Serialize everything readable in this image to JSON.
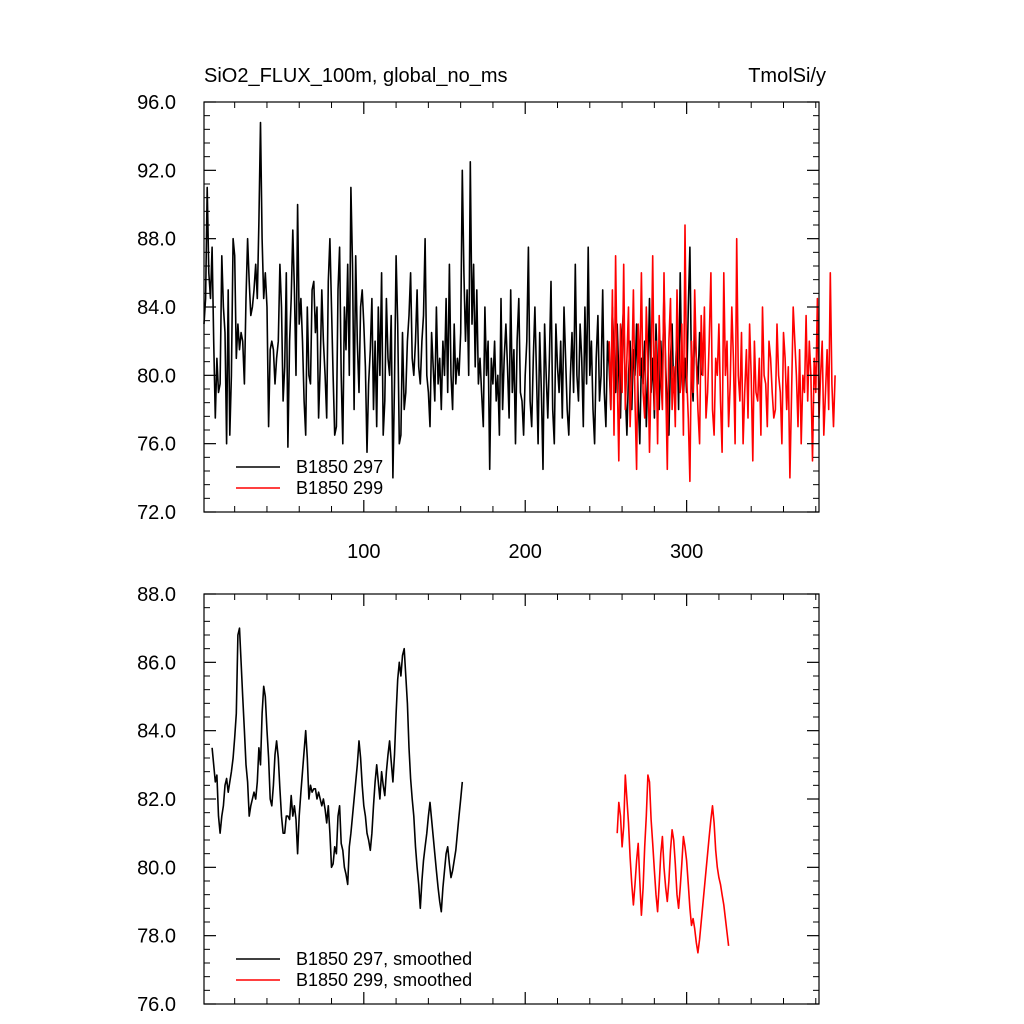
{
  "header": {
    "left_title": "SiO2_FLUX_100m, global_no_ms",
    "right_title": "TmolSi/y"
  },
  "colors": {
    "series_297": "#000000",
    "series_299": "#ff0000",
    "axes": "#000000"
  },
  "chart_data": [
    {
      "type": "line",
      "title": "SiO2_FLUX_100m, global_no_ms",
      "units": "TmolSi/y",
      "xlim": [
        1,
        382
      ],
      "ylim": [
        72,
        96
      ],
      "xticks": [
        100,
        200,
        300
      ],
      "xtick_labels": [
        "100",
        "200",
        "300"
      ],
      "yticks": [
        72,
        76,
        80,
        84,
        88,
        92,
        96
      ],
      "ytick_labels": [
        "72.0",
        "76.0",
        "80.0",
        "84.0",
        "88.0",
        "92.0",
        "96.0"
      ],
      "legend_position": "bottom-left",
      "series": [
        {
          "name": "B1850 297",
          "color": "#000000",
          "x_start": 1,
          "values": [
            83.0,
            84.5,
            91.0,
            86.0,
            84.5,
            87.5,
            82.0,
            77.5,
            81.0,
            79.0,
            79.5,
            87.0,
            84.0,
            82.5,
            76.0,
            85.0,
            76.5,
            80.0,
            88.0,
            87.0,
            81.0,
            83.0,
            81.5,
            82.5,
            82.0,
            79.5,
            84.5,
            88.0,
            85.5,
            83.5,
            84.0,
            85.0,
            86.5,
            84.5,
            89.0,
            94.8,
            88.0,
            84.5,
            86.0,
            84.0,
            77.0,
            81.5,
            82.0,
            81.5,
            79.5,
            81.0,
            82.0,
            86.5,
            84.0,
            78.5,
            80.5,
            86.0,
            75.8,
            82.0,
            84.5,
            88.5,
            85.0,
            80.0,
            90.0,
            83.0,
            84.5,
            82.0,
            78.5,
            76.5,
            84.0,
            80.0,
            79.5,
            85.0,
            85.5,
            82.5,
            84.0,
            77.5,
            80.5,
            85.0,
            82.0,
            80.0,
            77.5,
            85.5,
            88.0,
            84.0,
            80.0,
            76.5,
            77.0,
            85.0,
            87.5,
            80.0,
            76.0,
            84.0,
            81.5,
            86.5,
            80.0,
            91.0,
            86.5,
            78.0,
            87.0,
            82.0,
            79.0,
            84.0,
            85.0,
            83.0,
            80.5,
            75.5,
            79.5,
            81.5,
            84.5,
            78.0,
            82.0,
            77.0,
            84.0,
            80.0,
            86.0,
            76.5,
            78.5,
            84.5,
            81.0,
            80.0,
            83.5,
            74.0,
            79.5,
            87.0,
            83.0,
            76.0,
            76.5,
            82.5,
            78.0,
            79.0,
            82.0,
            83.5,
            86.0,
            81.0,
            80.0,
            82.0,
            85.0,
            80.5,
            79.5,
            82.0,
            83.5,
            88.0,
            80.0,
            79.0,
            77.0,
            82.5,
            80.5,
            78.5,
            84.0,
            79.5,
            81.0,
            78.0,
            82.0,
            80.0,
            84.5,
            79.0,
            86.5,
            80.0,
            78.0,
            83.0,
            79.5,
            81.0,
            80.0,
            82.5,
            92.0,
            86.0,
            82.0,
            85.0,
            80.0,
            92.5,
            83.0,
            86.5,
            80.5,
            85.0,
            79.5,
            81.0,
            79.0,
            77.0,
            84.0,
            80.0,
            82.0,
            74.5,
            81.0,
            79.5,
            82.0,
            78.5,
            80.0,
            76.5,
            84.5,
            78.0,
            81.0,
            83.0,
            80.5,
            77.5,
            85.0,
            79.0,
            81.5,
            76.0,
            82.0,
            84.5,
            79.0,
            78.5,
            76.5,
            80.0,
            82.0,
            87.5,
            78.5,
            77.0,
            81.0,
            84.0,
            80.0,
            76.0,
            82.5,
            79.0,
            74.5,
            83.0,
            80.0,
            77.5,
            81.0,
            85.5,
            78.0,
            76.0,
            83.0,
            80.5,
            79.0,
            82.0,
            77.5,
            84.0,
            81.0,
            78.0,
            76.5,
            80.0,
            82.5,
            79.0,
            86.5,
            80.0,
            78.5,
            83.0,
            81.0,
            77.0,
            84.0,
            79.5,
            87.5,
            80.0,
            82.0,
            78.0,
            76.0,
            81.0,
            83.5,
            78.5,
            80.0,
            85.0,
            79.0,
            77.0,
            82.0,
            80.5,
            78.0,
            84.0,
            81.0,
            79.0,
            83.0,
            80.0,
            77.5,
            82.5,
            84.0,
            79.0,
            76.5,
            80.0,
            82.0,
            78.0,
            81.5,
            80.0,
            83.0,
            78.5,
            76.0,
            81.0,
            79.5,
            82.0,
            77.0,
            80.0,
            84.5,
            79.0,
            81.0,
            77.5,
            83.0,
            80.0,
            78.0,
            82.0,
            79.5,
            85.0,
            80.5,
            78.0,
            76.5,
            81.0,
            83.0,
            79.0,
            80.0,
            82.5,
            78.0,
            86.0,
            80.0,
            78.5,
            81.0,
            79.0,
            84.0,
            87.5,
            80.0,
            78.5,
            83.0,
            81.0,
            79.5,
            82.5,
            80.0
          ]
        },
        {
          "name": "B1850 299",
          "color": "#ff0000",
          "x_start": 252,
          "values": [
            82.0,
            78.0,
            85.0,
            76.5,
            87.0,
            80.0,
            75.0,
            83.0,
            79.0,
            86.5,
            78.0,
            81.0,
            84.0,
            77.0,
            80.0,
            85.0,
            78.5,
            74.5,
            83.0,
            80.0,
            86.0,
            79.0,
            77.5,
            84.0,
            81.0,
            75.5,
            80.0,
            87.0,
            78.0,
            82.0,
            76.0,
            83.5,
            80.0,
            78.0,
            86.0,
            79.5,
            74.5,
            82.0,
            84.5,
            78.0,
            80.5,
            77.0,
            85.0,
            81.0,
            79.0,
            83.0,
            76.5,
            88.8,
            80.0,
            77.5,
            73.8,
            82.0,
            79.0,
            85.0,
            81.0,
            78.0,
            76.0,
            83.5,
            80.0,
            84.0,
            77.5,
            79.0,
            82.0,
            86.0,
            78.0,
            76.5,
            81.0,
            80.0,
            83.0,
            78.5,
            75.5,
            86.0,
            80.0,
            82.0,
            77.0,
            79.5,
            84.0,
            81.0,
            76.0,
            88.0,
            80.0,
            78.5,
            82.5,
            76.0,
            79.0,
            81.5,
            77.5,
            83.0,
            80.0,
            75.0,
            82.0,
            79.0,
            78.5,
            81.0,
            76.5,
            84.0,
            80.0,
            79.5,
            77.0,
            82.0,
            81.0,
            79.0,
            77.5,
            78.0,
            83.0,
            80.0,
            79.0,
            76.0,
            82.5,
            81.0,
            78.0,
            80.5,
            74.0,
            79.0,
            84.0,
            82.0,
            80.0,
            77.0,
            81.5,
            76.0,
            80.0,
            79.0,
            83.5,
            78.5,
            82.0,
            80.0,
            75.0,
            81.0,
            79.0,
            84.5,
            77.5,
            80.0,
            82.0,
            76.5,
            79.0,
            81.5,
            78.0,
            86.0,
            79.5,
            77.0,
            80.0
          ]
        }
      ]
    },
    {
      "type": "line",
      "xlim": [
        1,
        382
      ],
      "ylim": [
        76,
        88
      ],
      "xticks": [
        100,
        200,
        300
      ],
      "xtick_labels": [
        "",
        "",
        ""
      ],
      "yticks": [
        76,
        78,
        80,
        82,
        84,
        86,
        88
      ],
      "ytick_labels": [
        "76.0",
        "78.0",
        "80.0",
        "82.0",
        "84.0",
        "86.0",
        "88.0"
      ],
      "legend_position": "bottom-left",
      "series": [
        {
          "name": "B1850 297, smoothed",
          "color": "#000000",
          "x_start": 6,
          "values": [
            83.5,
            83.0,
            82.5,
            82.7,
            81.5,
            81.0,
            81.5,
            81.8,
            82.4,
            82.6,
            82.2,
            82.5,
            82.8,
            83.2,
            83.8,
            84.5,
            86.8,
            87.0,
            86.0,
            85.0,
            84.0,
            83.0,
            82.5,
            81.5,
            81.8,
            82.0,
            82.2,
            82.0,
            82.5,
            83.5,
            83.0,
            84.5,
            85.3,
            85.0,
            84.0,
            83.2,
            82.0,
            81.8,
            82.4,
            83.3,
            83.7,
            83.2,
            82.3,
            81.5,
            81.0,
            81.0,
            81.5,
            81.5,
            81.4,
            82.1,
            81.5,
            81.8,
            81.4,
            80.4,
            81.5,
            82.2,
            82.8,
            83.4,
            84.0,
            83.2,
            82.0,
            82.4,
            82.2,
            82.3,
            82.3,
            82.0,
            82.2,
            82.0,
            81.8,
            82.0,
            81.7,
            81.3,
            81.8,
            81.0,
            80.0,
            80.1,
            80.6,
            80.4,
            81.5,
            81.8,
            80.7,
            80.5,
            80.0,
            79.8,
            79.5,
            80.6,
            81.0,
            81.5,
            82.0,
            82.5,
            83.0,
            83.7,
            83.2,
            82.4,
            81.8,
            81.5,
            81.0,
            80.8,
            80.5,
            81.0,
            81.8,
            82.5,
            83.0,
            82.5,
            82.0,
            82.8,
            82.4,
            82.1,
            82.8,
            83.3,
            83.7,
            83.1,
            82.5,
            83.3,
            84.5,
            85.5,
            86.0,
            85.6,
            86.2,
            86.4,
            85.6,
            84.8,
            83.5,
            82.6,
            82.0,
            81.5,
            80.6,
            80.0,
            79.5,
            78.8,
            79.6,
            80.2,
            80.6,
            81.0,
            81.5,
            81.9,
            81.4,
            80.9,
            80.4,
            79.9,
            79.4,
            79.0,
            78.7,
            79.4,
            79.9,
            80.4,
            80.6,
            80.1,
            79.7,
            79.9,
            80.2,
            80.5,
            81.0,
            81.5,
            82.0,
            82.5
          ]
        },
        {
          "name": "B1850 299, smoothed",
          "color": "#ff0000",
          "x_start": 257,
          "values": [
            81.0,
            81.9,
            81.5,
            80.6,
            81.2,
            82.7,
            82.0,
            81.3,
            80.3,
            79.5,
            78.9,
            79.5,
            80.2,
            80.7,
            79.6,
            78.6,
            79.4,
            80.6,
            81.5,
            82.7,
            82.5,
            81.4,
            80.7,
            79.9,
            79.2,
            78.7,
            79.5,
            80.4,
            80.9,
            80.0,
            79.4,
            79.0,
            79.6,
            80.5,
            81.1,
            80.8,
            80.1,
            79.2,
            78.8,
            79.4,
            80.1,
            80.9,
            80.6,
            80.2,
            79.5,
            78.8,
            78.3,
            78.5,
            78.2,
            77.8,
            77.5,
            77.9,
            78.4,
            78.9,
            79.4,
            79.9,
            80.4,
            80.9,
            81.4,
            81.8,
            81.3,
            80.5,
            80.0,
            79.7,
            79.5,
            79.2,
            78.9,
            78.5,
            78.1,
            77.7
          ]
        }
      ]
    }
  ]
}
